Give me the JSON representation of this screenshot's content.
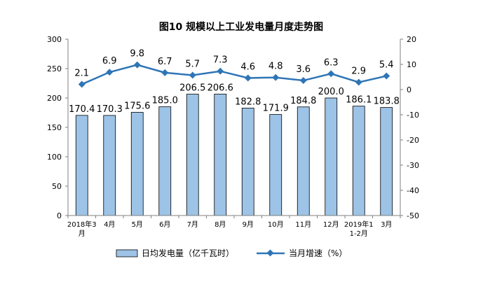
{
  "chart_data": {
    "type": "bar+line",
    "title": "图10  规模以上工业发电量月度走势图",
    "categories": [
      [
        "2018年3",
        "月"
      ],
      [
        "4月"
      ],
      [
        "5月"
      ],
      [
        "6月"
      ],
      [
        "7月"
      ],
      [
        "8月"
      ],
      [
        "9月"
      ],
      [
        "10月"
      ],
      [
        "11月"
      ],
      [
        "12月"
      ],
      [
        "2019年1",
        "1-2月"
      ],
      [
        "3月"
      ]
    ],
    "bar_series": {
      "name": "日均发电量（亿千瓦时）",
      "values": [
        170.4,
        170.3,
        175.6,
        185.0,
        206.5,
        206.6,
        182.8,
        171.9,
        184.8,
        200.0,
        186.1,
        183.8
      ],
      "labels": [
        "170.4",
        "170.3",
        "175.6",
        "185.0",
        "206.5",
        "206.6",
        "182.8",
        "171.9",
        "184.8",
        "200.0",
        "186.1",
        "183.8"
      ]
    },
    "line_series": {
      "name": "当月增速（%）",
      "values": [
        2.1,
        6.9,
        9.8,
        6.7,
        5.7,
        7.3,
        4.6,
        4.8,
        3.6,
        6.3,
        2.9,
        5.4
      ],
      "labels": [
        "2.1",
        "6.9",
        "9.8",
        "6.7",
        "5.7",
        "7.3",
        "4.6",
        "4.8",
        "3.6",
        "6.3",
        "2.9",
        "5.4"
      ]
    },
    "y_left": {
      "ylim": [
        0,
        300
      ],
      "ticks": [
        "0",
        "50",
        "100",
        "150",
        "200",
        "250",
        "300"
      ]
    },
    "y_right": {
      "ylim": [
        -50,
        20
      ],
      "ticks": [
        "-50",
        "-40",
        "-30",
        "-20",
        "-10",
        "0",
        "10",
        "20"
      ]
    },
    "colors": {
      "bar_fill": "#9DC3E6",
      "bar_stroke": "#000000",
      "line": "#2E75B6"
    },
    "legend_position": "bottom"
  }
}
